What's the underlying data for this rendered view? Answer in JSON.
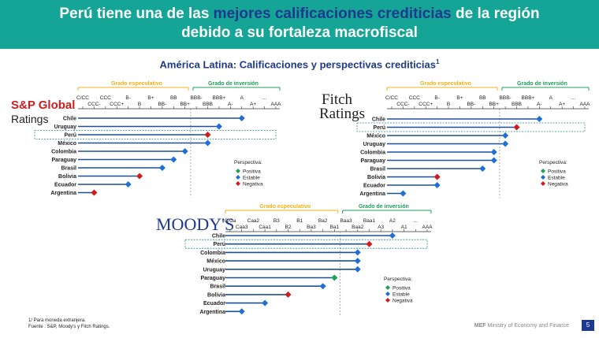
{
  "header": {
    "title_before": "Perú tiene una de las ",
    "title_highlight": "mejores calificaciones crediticias",
    "title_after": " de la región",
    "title_line2": "debido a su fortaleza macrofiscal"
  },
  "subtitle": "América Latina: Calificaciones y perspectivas crediticias",
  "subtitle_sup": "1",
  "footnotes": {
    "line1": "1/ Para moneda extranjera.",
    "line2": "Fuente : S&P, Moody's y Fitch Ratings."
  },
  "footer": {
    "brand_bold": "MEF",
    "brand_rest": " Ministry of Economy and Finance",
    "page": "5"
  },
  "colors": {
    "banner": "#14a596",
    "highlight": "#1d3a8f",
    "speculative": "#f2b21b",
    "investment": "#1fa05a",
    "bar": "#1f4e9a",
    "positiva": "#1fa05a",
    "estable": "#1f6fd6",
    "negativa": "#d01c1c"
  },
  "chart_data": [
    {
      "type": "bar",
      "agency": "S&P Global Ratings",
      "logo_line1": "S&P Global",
      "logo_line2": "Ratings",
      "grade_labels": {
        "speculative": "Grado especulativo",
        "investment": "Grado de inversión"
      },
      "scale": [
        "C/CC",
        "CCC-",
        "CCC",
        "CCC+",
        "B-",
        "B",
        "B+",
        "BB-",
        "BB",
        "BB+",
        "BBB-",
        "BBB",
        "BBB+",
        "A-",
        "A",
        "A+",
        "...",
        "AAA"
      ],
      "legend_title": "Perspectiva:",
      "legend": [
        "Positiva",
        "Estable",
        "Negativa"
      ],
      "rows": [
        {
          "country": "Chile",
          "rating": "A",
          "outlook": "Estable"
        },
        {
          "country": "Uruguay",
          "rating": "BBB+",
          "outlook": "Estable"
        },
        {
          "country": "Perú",
          "rating": "BBB",
          "outlook": "Negativa",
          "highlight": true
        },
        {
          "country": "México",
          "rating": "BBB",
          "outlook": "Estable"
        },
        {
          "country": "Colombia",
          "rating": "BB+",
          "outlook": "Estable"
        },
        {
          "country": "Paraguay",
          "rating": "BB",
          "outlook": "Estable"
        },
        {
          "country": "Brasil",
          "rating": "BB-",
          "outlook": "Estable"
        },
        {
          "country": "Bolivia",
          "rating": "B",
          "outlook": "Negativa"
        },
        {
          "country": "Ecuador",
          "rating": "B-",
          "outlook": "Estable"
        },
        {
          "country": "Argentina",
          "rating": "CCC-",
          "outlook": "Negativa"
        }
      ]
    },
    {
      "type": "bar",
      "agency": "Fitch Ratings",
      "logo_line1": "Fitch",
      "logo_line2": "Ratings",
      "grade_labels": {
        "speculative": "Grado especulativo",
        "investment": "Grado de inversión"
      },
      "scale": [
        "C/CC",
        "CCC-",
        "CCC",
        "CCC+",
        "B-",
        "B",
        "B+",
        "BB-",
        "BB",
        "BB+",
        "BBB-",
        "BBB",
        "BBB+",
        "A-",
        "A",
        "A+",
        "...",
        "AAA"
      ],
      "legend_title": "Perspectiva:",
      "legend": [
        "Positiva",
        "Estable",
        "Negativa"
      ],
      "rows": [
        {
          "country": "Chile",
          "rating": "A-",
          "outlook": "Estable"
        },
        {
          "country": "Perú",
          "rating": "BBB",
          "outlook": "Negativa",
          "highlight": true
        },
        {
          "country": "México",
          "rating": "BBB-",
          "outlook": "Estable"
        },
        {
          "country": "Uruguay",
          "rating": "BBB-",
          "outlook": "Estable"
        },
        {
          "country": "Colombia",
          "rating": "BB+",
          "outlook": "Estable"
        },
        {
          "country": "Paraguay",
          "rating": "BB+",
          "outlook": "Estable"
        },
        {
          "country": "Brasil",
          "rating": "BB",
          "outlook": "Estable"
        },
        {
          "country": "Bolivia",
          "rating": "B-",
          "outlook": "Negativa"
        },
        {
          "country": "Ecuador",
          "rating": "B-",
          "outlook": "Estable"
        },
        {
          "country": "Argentina",
          "rating": "CCC-",
          "outlook": "Estable"
        }
      ]
    },
    {
      "type": "bar",
      "agency": "Moody's",
      "logo_line1": "MOODY'S",
      "grade_labels": {
        "speculative": "Grado especulativo",
        "investment": "Grado de inversión"
      },
      "scale": [
        "C/Ca",
        "Caa3",
        "Caa2",
        "Caa1",
        "B3",
        "B2",
        "B1",
        "Ba3",
        "Ba2",
        "Ba1",
        "Baa3",
        "Baa2",
        "Baa1",
        "A3",
        "A2",
        "A1",
        "...",
        "AAA"
      ],
      "legend_title": "Perspectiva:",
      "legend": [
        "Positiva",
        "Estable",
        "Negativa"
      ],
      "rows": [
        {
          "country": "Chile",
          "rating": "A2",
          "outlook": "Estable"
        },
        {
          "country": "Perú",
          "rating": "Baa1",
          "outlook": "Negativa",
          "highlight": true
        },
        {
          "country": "Colombia",
          "rating": "Baa2",
          "outlook": "Estable"
        },
        {
          "country": "México",
          "rating": "Baa2",
          "outlook": "Estable"
        },
        {
          "country": "Uruguay",
          "rating": "Baa2",
          "outlook": "Estable"
        },
        {
          "country": "Paraguay",
          "rating": "Ba1",
          "outlook": "Positiva"
        },
        {
          "country": "Brasil",
          "rating": "Ba2",
          "outlook": "Estable"
        },
        {
          "country": "Bolivia",
          "rating": "B2",
          "outlook": "Negativa"
        },
        {
          "country": "Ecuador",
          "rating": "Caa1",
          "outlook": "Estable"
        },
        {
          "country": "Argentina",
          "rating": "Caa3",
          "outlook": "Estable"
        }
      ]
    }
  ]
}
